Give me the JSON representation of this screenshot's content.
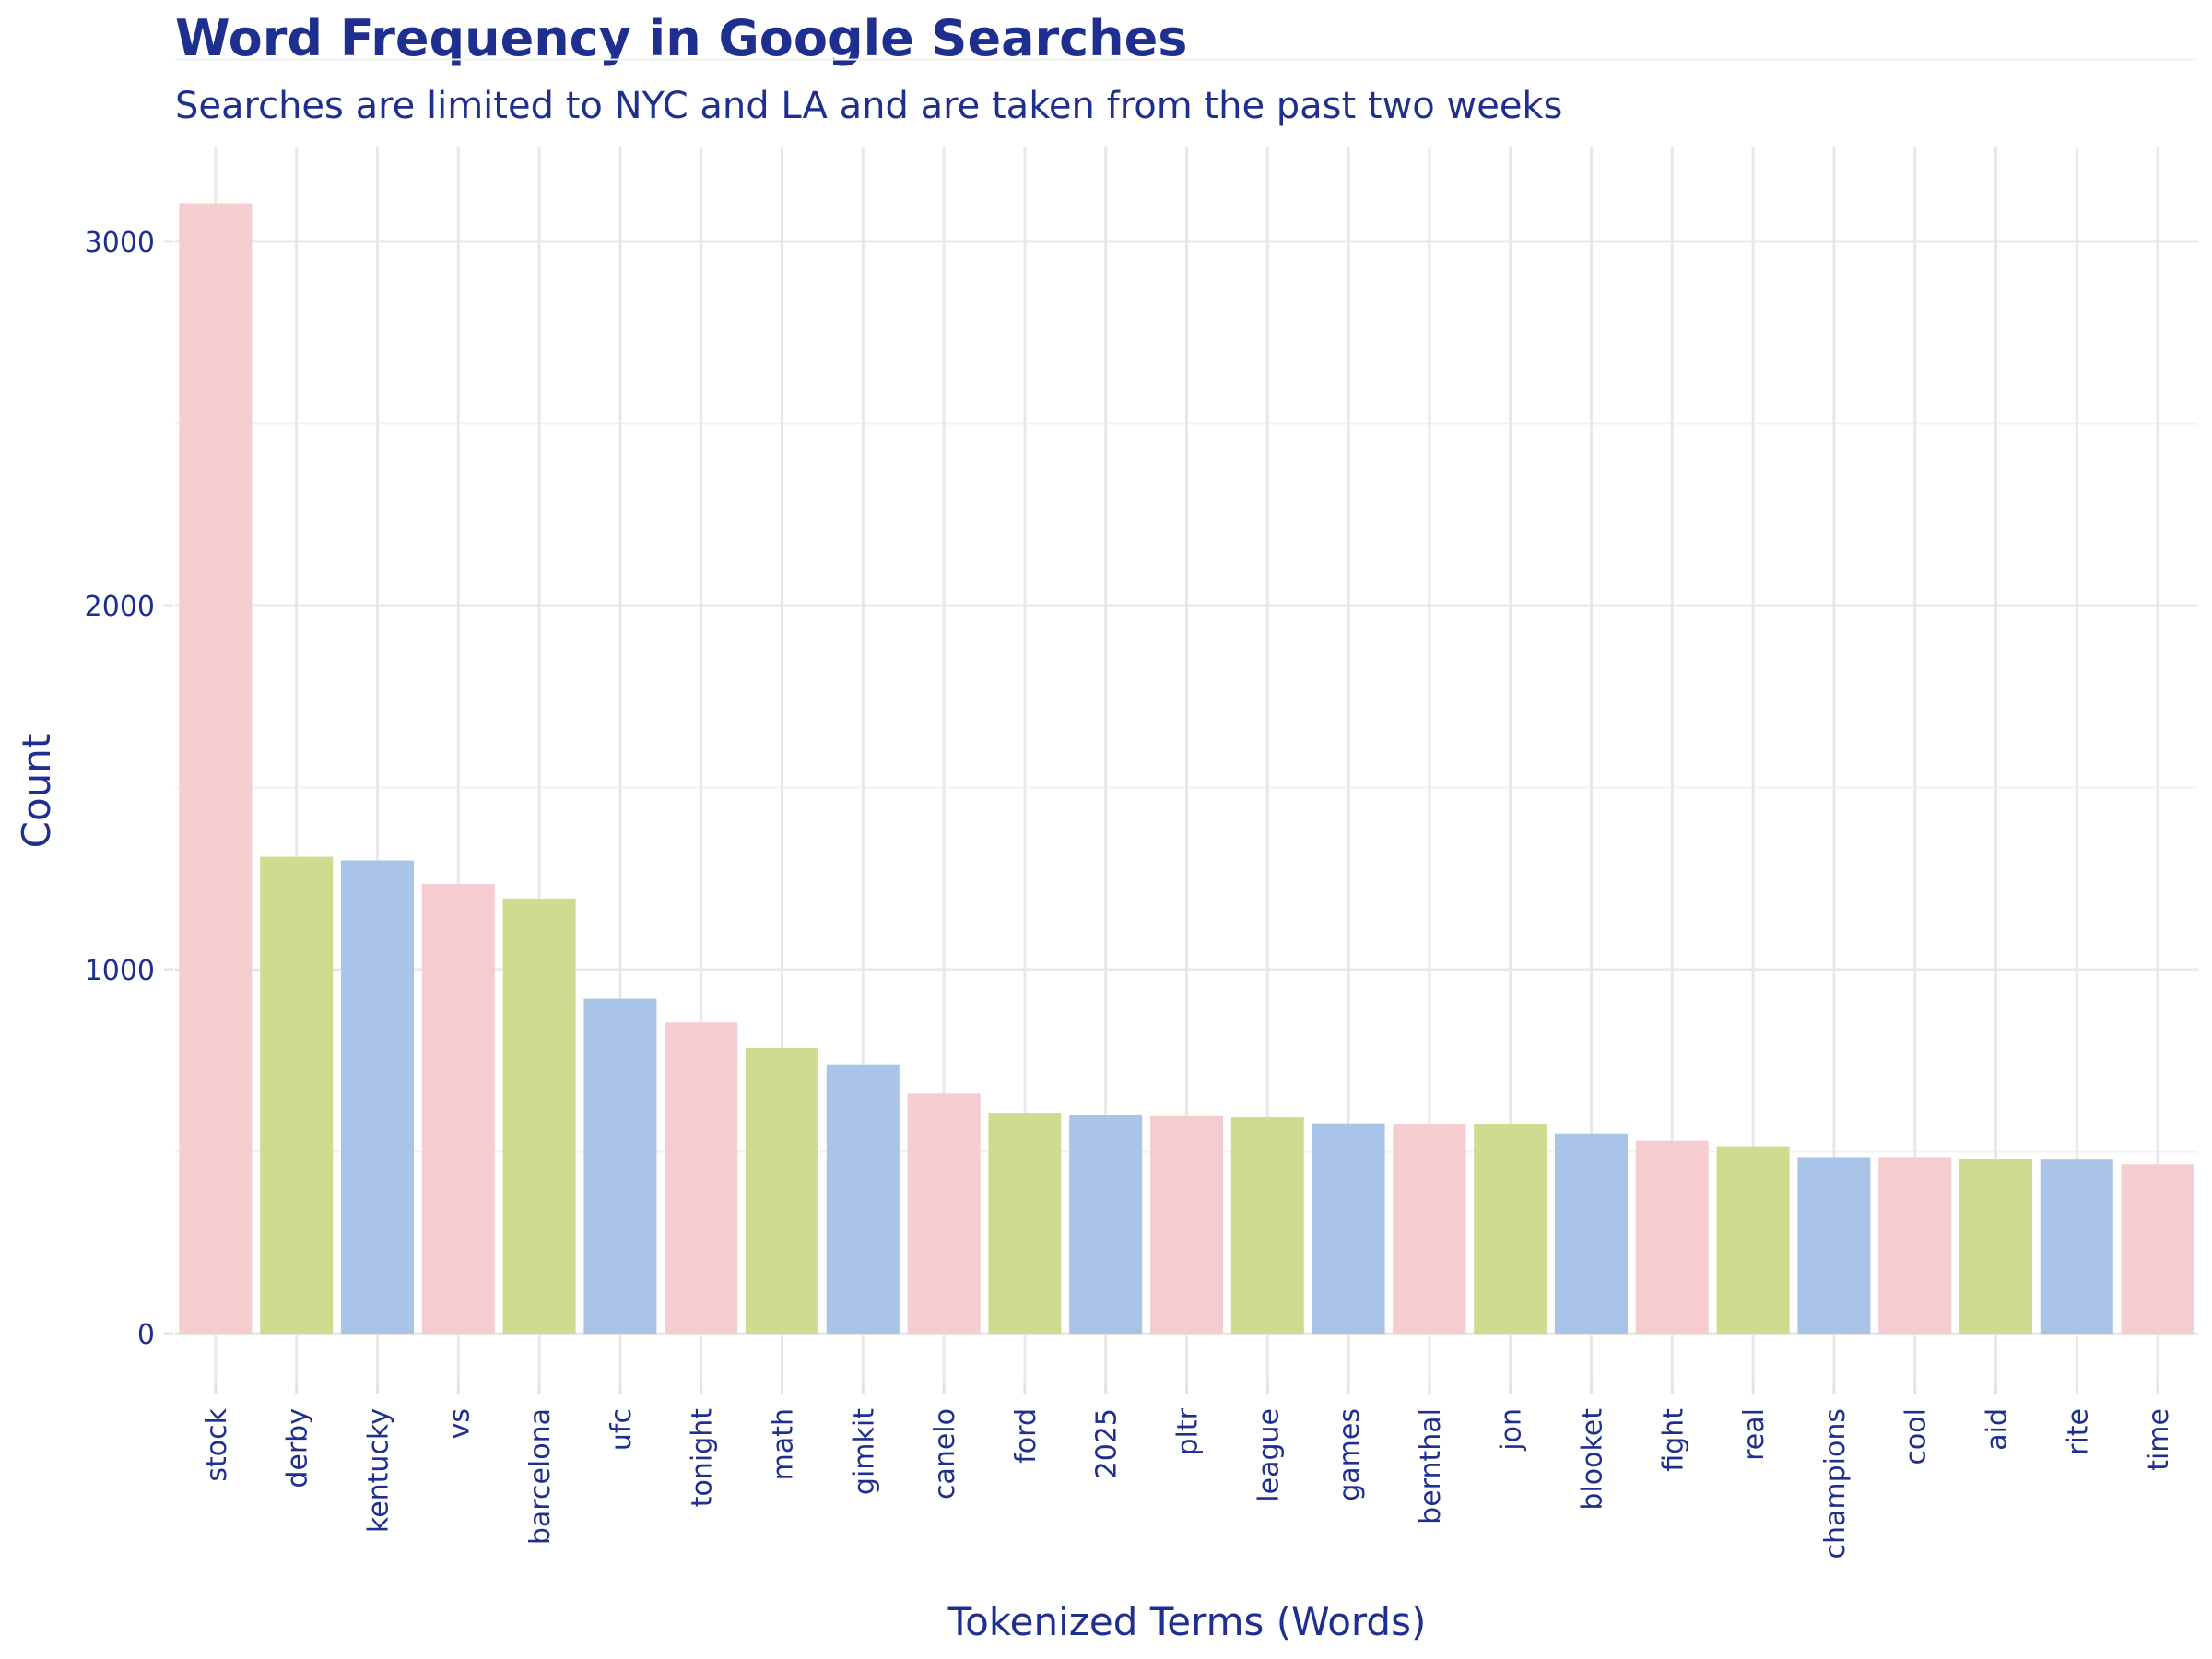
{
  "chart_data": {
    "type": "bar",
    "title": "Word Frequency in Google Searches",
    "subtitle": "Searches are limited to NYC and LA and are taken from the past two weeks",
    "xlabel": "Tokenized Terms (Words)",
    "ylabel": "Count",
    "ylim": [
      -130,
      3250
    ],
    "yticks": [
      0,
      1000,
      2000,
      3000
    ],
    "grid": true,
    "categories": [
      "stock",
      "derby",
      "kentucky",
      "vs",
      "barcelona",
      "ufc",
      "tonight",
      "math",
      "gimkit",
      "canelo",
      "ford",
      "2025",
      "pltr",
      "league",
      "games",
      "bernthal",
      "jon",
      "blooket",
      "fight",
      "real",
      "champions",
      "cool",
      "aid",
      "rite",
      "time"
    ],
    "values": [
      3105,
      1310,
      1300,
      1235,
      1195,
      920,
      855,
      785,
      740,
      660,
      605,
      600,
      598,
      595,
      578,
      575,
      575,
      550,
      530,
      515,
      485,
      485,
      480,
      478,
      465
    ],
    "bar_colors": [
      "#f5cccf",
      "#cfdb8f",
      "#aac4e8",
      "#f5cccf",
      "#cfdb8f",
      "#aac4e8",
      "#f5cccf",
      "#cfdb8f",
      "#aac4e8",
      "#f5cccf",
      "#cfdb8f",
      "#aac4e8",
      "#f5cccf",
      "#cfdb8f",
      "#aac4e8",
      "#f5cccf",
      "#cfdb8f",
      "#aac4e8",
      "#f5cccf",
      "#cfdb8f",
      "#aac4e8",
      "#f5cccf",
      "#cfdb8f",
      "#aac4e8",
      "#f5cccf"
    ],
    "text_color": "#1f2f8f"
  }
}
